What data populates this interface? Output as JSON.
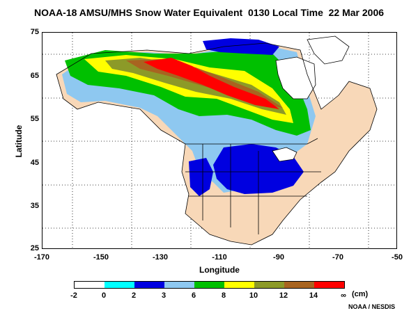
{
  "title": "NOAA-18 AMSU/MHS Snow Water Equivalent  0130 Local Time  22 Mar 2006",
  "axes": {
    "xlabel": "Longitude",
    "ylabel": "Latitude",
    "xticks": [
      "-170",
      "-150",
      "-130",
      "-110",
      "-90",
      "-70",
      "-50"
    ],
    "yticks": [
      "75",
      "65",
      "55",
      "45",
      "35",
      "25"
    ],
    "xlim": [
      -170,
      -50
    ],
    "ylim": [
      25,
      75
    ]
  },
  "legend": {
    "labels": [
      "-2",
      "0",
      "2",
      "3",
      "6",
      "8",
      "10",
      "12",
      "14",
      "∞"
    ],
    "unit": "(cm)",
    "colors": [
      "#ffffff",
      "#00ffff",
      "#0000e0",
      "#8ec8f0",
      "#00c000",
      "#ffff00",
      "#8c9a28",
      "#a86420",
      "#ff0000"
    ]
  },
  "map_colors": {
    "land_no_snow": "#f8d8b8",
    "water": "#ffffff",
    "borders": "#000000"
  },
  "credit": "NOAA / NESDIS"
}
